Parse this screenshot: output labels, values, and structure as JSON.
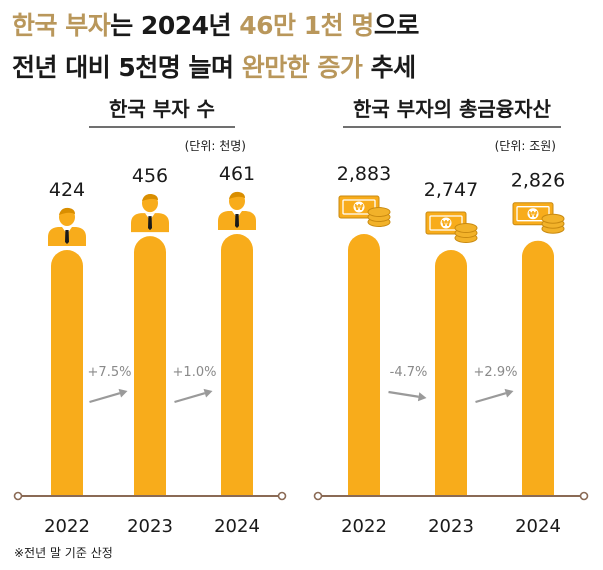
{
  "headline": {
    "line1": [
      {
        "text": "한국 부자",
        "accent": true
      },
      {
        "text": "는 2024년 ",
        "accent": false
      },
      {
        "text": "46만 1천 명",
        "accent": true
      },
      {
        "text": "으로",
        "accent": false
      }
    ],
    "line2": [
      {
        "text": "전년 대비 5천명 늘며 ",
        "accent": false
      },
      {
        "text": "완만한 증가",
        "accent": true
      },
      {
        "text": " 추세",
        "accent": false
      }
    ]
  },
  "colors": {
    "accent": "#b9975b",
    "bar": "#f8ac1b",
    "arrow": "#9a9a9a",
    "axis": "#8a6a55",
    "text": "#1a1a1a",
    "coin": "#f2b22a"
  },
  "chart_data": [
    {
      "type": "bar",
      "title": "한국 부자 수",
      "unit": "(단위: 천명)",
      "icon": "person-icon",
      "categories": [
        "2022",
        "2023",
        "2024"
      ],
      "values": [
        424,
        456,
        461
      ],
      "value_labels": [
        "424",
        "456",
        "461"
      ],
      "changes": [
        "+7.5%",
        "+1.0%"
      ],
      "change_direction": [
        "up",
        "up"
      ]
    },
    {
      "type": "bar",
      "title": "한국 부자의 총금융자산",
      "unit": "(단위: 조원)",
      "icon": "money-coins-icon",
      "categories": [
        "2022",
        "2023",
        "2024"
      ],
      "values": [
        2883,
        2747,
        2826
      ],
      "value_labels": [
        "2,883",
        "2,747",
        "2,826"
      ],
      "changes": [
        "-4.7%",
        "+2.9%"
      ],
      "change_direction": [
        "down",
        "up"
      ]
    }
  ],
  "footnote": "※전년 말 기준 산정"
}
